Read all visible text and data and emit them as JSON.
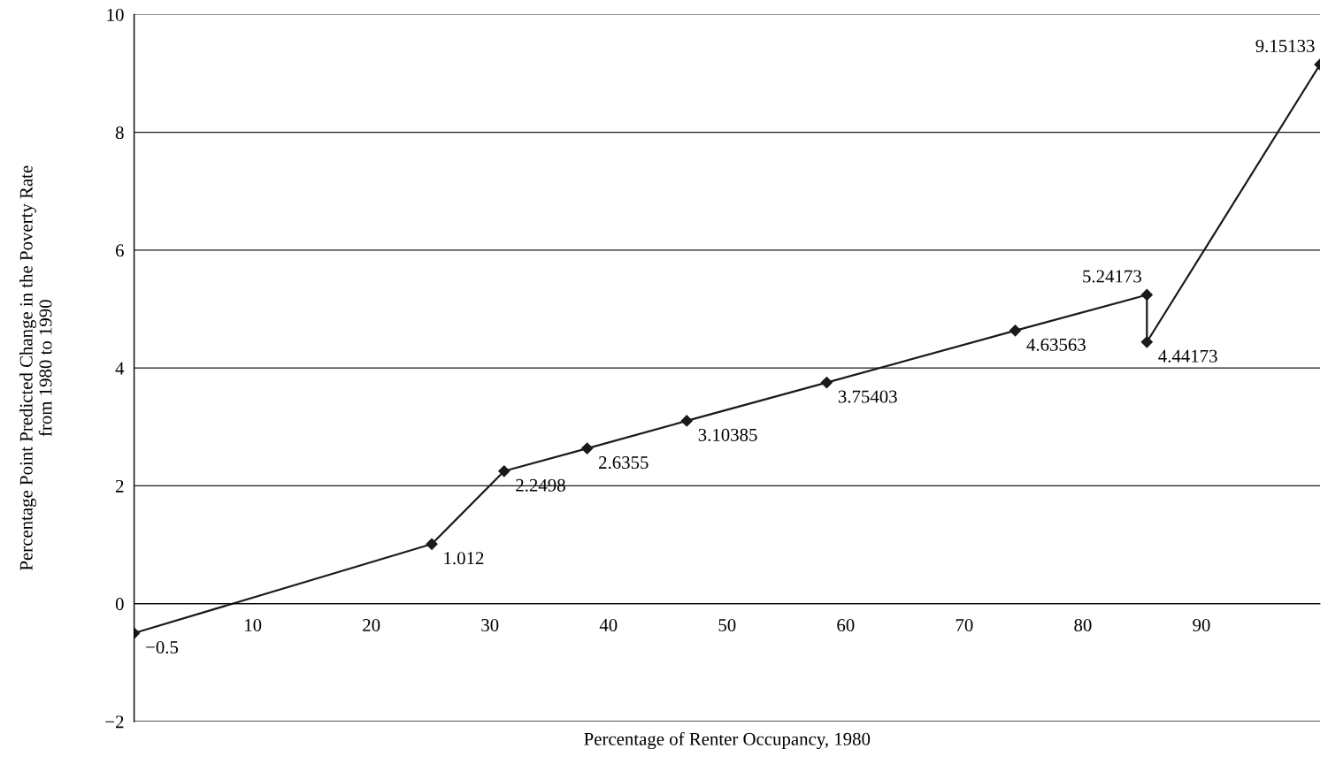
{
  "chart_data": {
    "type": "line",
    "xlabel": "Percentage of Renter Occupancy, 1980",
    "ylabel": "Percentage Point Predicted Change in the Poverty Rate\nfrom 1980 to 1990",
    "x": [
      0,
      25.1,
      31.2,
      38.2,
      46.6,
      58.4,
      74.3,
      85.4,
      85.4,
      100
    ],
    "series": [
      {
        "color": "#1a1a1a",
        "values": [
          -0.5,
          1.012,
          2.2498,
          2.6355,
          3.10385,
          3.75403,
          4.63563,
          5.24173,
          4.44173,
          9.15133
        ],
        "value_labels": [
          "−0.5",
          "1.012",
          "2.2498",
          "2.6355",
          "3.10385",
          "3.75403",
          "4.63563",
          "5.24173",
          "4.44173",
          "9.15133"
        ]
      }
    ],
    "xlim": [
      0,
      100
    ],
    "ylim": [
      -2,
      10
    ],
    "xticks": [
      10,
      20,
      30,
      40,
      50,
      60,
      70,
      80,
      90
    ],
    "yticks": [
      {
        "value": -2,
        "label": "−2"
      },
      0,
      2,
      4,
      6,
      8,
      10
    ],
    "grid": "y",
    "marker": "diamond",
    "line_style": "solid",
    "legend": false
  }
}
